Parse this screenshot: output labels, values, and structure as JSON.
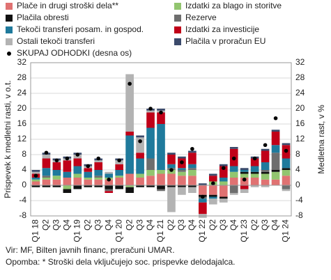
{
  "chart_data": {
    "type": "bar",
    "stacked": true,
    "ylabel": "Prispevek k medletni rasti, v o.t.",
    "y2label": "Medletna rast, v %",
    "categories": [
      "Q1 18",
      "Q2",
      "Q3",
      "Q4",
      "Q1 19",
      "Q2",
      "Q3",
      "Q4",
      "Q1 20",
      "Q2",
      "Q3",
      "Q4",
      "Q1 21",
      "Q2",
      "Q3",
      "Q4",
      "Q1 22",
      "Q2",
      "Q3",
      "Q4",
      "Q1 23",
      "Q2",
      "Q3",
      "Q4",
      "Q1 24"
    ],
    "series": [
      {
        "name": "Plače in drugi stroški dela**",
        "color": "#e07272",
        "values": [
          1,
          1.5,
          1.5,
          2,
          2,
          1.5,
          1.5,
          1.5,
          2,
          3,
          2,
          2.5,
          3,
          3,
          2.5,
          2.5,
          -2.5,
          -2.5,
          -3,
          2,
          2,
          2,
          1.5,
          1.5,
          2.5
        ]
      },
      {
        "name": "Izdatki za blago in storitve",
        "color": "#92c56f",
        "values": [
          0.5,
          0.5,
          1,
          -1,
          1,
          0.5,
          0.5,
          0.5,
          0.5,
          -0.5,
          1,
          1.5,
          1,
          1,
          1,
          1.5,
          0,
          1,
          1,
          1.5,
          1,
          1,
          1.5,
          2,
          1.5
        ]
      },
      {
        "name": "Plačila obresti",
        "color": "#111111",
        "values": [
          -0.5,
          -0.5,
          -0.5,
          -1,
          -1,
          -0.5,
          -0.5,
          -1,
          -1,
          -1.5,
          -0.5,
          -0.5,
          -1,
          -0.5,
          -0.5,
          -0.5,
          -0.5,
          -0.5,
          -0.5,
          0,
          0.5,
          0.5,
          0.5,
          0.5,
          0.5
        ]
      },
      {
        "name": "Rezerve",
        "color": "#6e6e6e",
        "values": [
          0,
          0.5,
          0,
          0,
          0,
          0,
          0.5,
          -0.5,
          0,
          0,
          0,
          3,
          -0.5,
          0.5,
          0.5,
          0.5,
          -0.5,
          0,
          0,
          -2,
          0,
          0,
          0.5,
          4.5,
          -1
        ]
      },
      {
        "name": "Tekoči transferi posam. in gospod.",
        "color": "#1f7a9c",
        "values": [
          0.5,
          2,
          1.5,
          1.5,
          2,
          1.5,
          1.5,
          1,
          1.5,
          10,
          4,
          8,
          12,
          1,
          0.5,
          1,
          -1,
          -0.5,
          1,
          1.5,
          0.5,
          1.5,
          2,
          2,
          2.5
        ]
      },
      {
        "name": "Izdatki za investicije",
        "color": "#c00018",
        "values": [
          1,
          2.5,
          2,
          3,
          2,
          1,
          2,
          -0.5,
          1.5,
          1,
          1.5,
          4,
          3,
          2.5,
          2.5,
          3,
          -3,
          1.5,
          3,
          4.5,
          -1,
          2,
          3,
          3.5,
          3.5
        ]
      },
      {
        "name": "Ostali tekoči transferi",
        "color": "#b3b3b3",
        "values": [
          0.5,
          1,
          0.5,
          0.5,
          1,
          0.5,
          0.5,
          0.5,
          1,
          15,
          4,
          0.5,
          0.5,
          -6.5,
          -2,
          -1.5,
          -1,
          -1.5,
          -1,
          -0.5,
          -1,
          -0.5,
          -0.5,
          0,
          -0.5
        ]
      },
      {
        "name": "Plačila v proračun EU",
        "color": "#3b4a6b",
        "values": [
          0.5,
          0.5,
          0.5,
          0.5,
          0.5,
          0.5,
          0.5,
          0,
          0.5,
          0,
          0.5,
          0.5,
          0.5,
          0.5,
          0.5,
          0.5,
          0.5,
          0.5,
          0.5,
          0.5,
          0.5,
          0.5,
          0.5,
          0.5,
          0.5
        ]
      },
      {
        "name": "SKUPAJ ODHODKI (desna os)",
        "color": "#000000",
        "marker": "dot",
        "axis": "y2",
        "values": [
          2.5,
          8.5,
          6.5,
          7,
          8,
          5,
          7,
          1.5,
          6.5,
          26.5,
          11.5,
          20,
          19,
          4,
          6,
          9.5,
          -3,
          0.5,
          4.5,
          7,
          1.5,
          7,
          10.5,
          17.5,
          9
        ]
      }
    ],
    "ylim": [
      -8,
      32
    ],
    "yticks": [
      -8,
      -4,
      0,
      4,
      8,
      12,
      16,
      20,
      24,
      28,
      32
    ],
    "y2lim": [
      -8,
      32
    ],
    "y2ticks": [
      -8,
      -4,
      0,
      4,
      8,
      12,
      16,
      20,
      24,
      28,
      32
    ],
    "grid": true,
    "source": "Vir: MF, Bilten javnih financ, preračuni UMAR.",
    "note": "Opomba: * Stroški dela vključujejo soc. prispevke delodajalca."
  }
}
